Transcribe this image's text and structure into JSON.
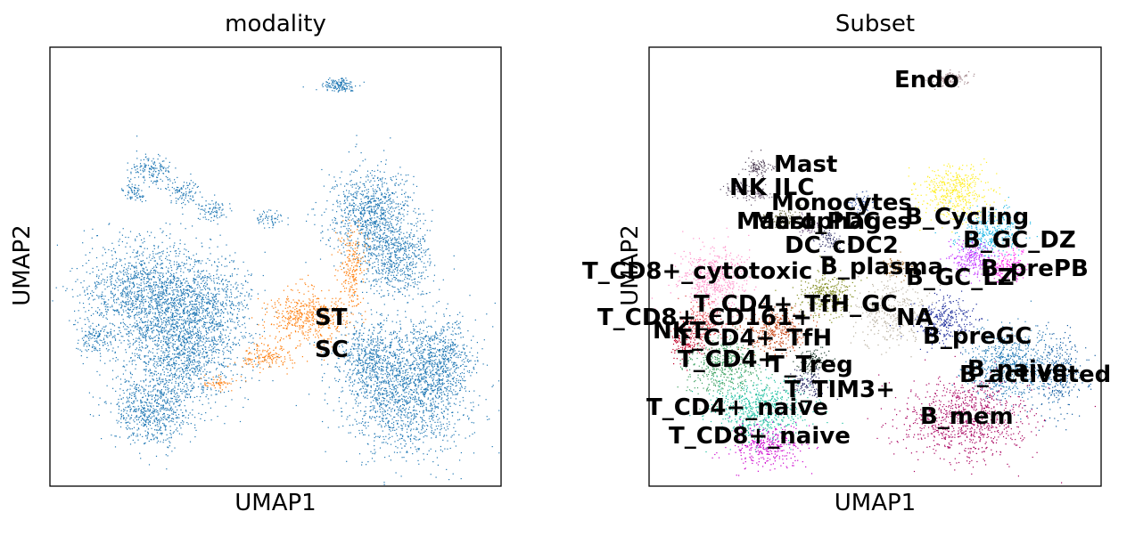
{
  "chart_data": [
    {
      "type": "scatter",
      "title": "modality",
      "xlabel": "UMAP1",
      "ylabel": "UMAP2",
      "grid": false,
      "legend": "on-data",
      "series": [
        {
          "name": "ST",
          "color": "#1f77b4"
        },
        {
          "name": "SC",
          "color": "#ff7f0e"
        }
      ],
      "labels_on_data": [
        {
          "text": "ST"
        },
        {
          "text": "SC"
        }
      ]
    },
    {
      "type": "scatter",
      "title": "Subset",
      "xlabel": "UMAP1",
      "ylabel": "UMAP2",
      "grid": false,
      "legend": "on-data",
      "labels_on_data": [
        {
          "text": "Endo",
          "color": "#a68a8f"
        },
        {
          "text": "Mast",
          "color": "#4b3b52"
        },
        {
          "text": "NK",
          "color": "#5c4e66"
        },
        {
          "text": "ILC",
          "color": "#6d5c74"
        },
        {
          "text": "Monocytes",
          "color": "#3a5aa8"
        },
        {
          "text": "Macrophages",
          "color": "#6b6b40"
        },
        {
          "text": "Mast_PDC",
          "color": "#6a4c7a"
        },
        {
          "text": "B_Cycling",
          "color": "#ffee22"
        },
        {
          "text": "DC_cDC2",
          "color": "#3c3c70"
        },
        {
          "text": "B_GC_DZ",
          "color": "#22b8e6"
        },
        {
          "text": "B_plasma",
          "color": "#a06a2a"
        },
        {
          "text": "B_GC_LZ",
          "color": "#c232ff"
        },
        {
          "text": "B_prePB",
          "color": "#ff22ee"
        },
        {
          "text": "T_CD8+_cytotoxic",
          "color": "#ff8ec8"
        },
        {
          "text": "T_CD4+_TfH_GC",
          "color": "#7f8a1a"
        },
        {
          "text": "T_CD8+_CD161+",
          "color": "#e2424a"
        },
        {
          "text": "NA",
          "color": "#b8b0a0"
        },
        {
          "text": "NKT",
          "color": "#c00028"
        },
        {
          "text": "T_CD4+_TfH",
          "color": "#c84a1a"
        },
        {
          "text": "B_preGC",
          "color": "#1a2a9a"
        },
        {
          "text": "T_CD4+",
          "color": "#3ca060"
        },
        {
          "text": "T_Treg",
          "color": "#1a3a2a"
        },
        {
          "text": "B_naive",
          "color": "#1f77b4"
        },
        {
          "text": "B_activated",
          "color": "#0e5aa0"
        },
        {
          "text": "T_TIM3+",
          "color": "#2a2a66"
        },
        {
          "text": "T_CD4+_naive",
          "color": "#1abfa0"
        },
        {
          "text": "B_mem",
          "color": "#a8005e"
        },
        {
          "text": "T_CD8+_naive",
          "color": "#cc00cc"
        }
      ]
    }
  ]
}
